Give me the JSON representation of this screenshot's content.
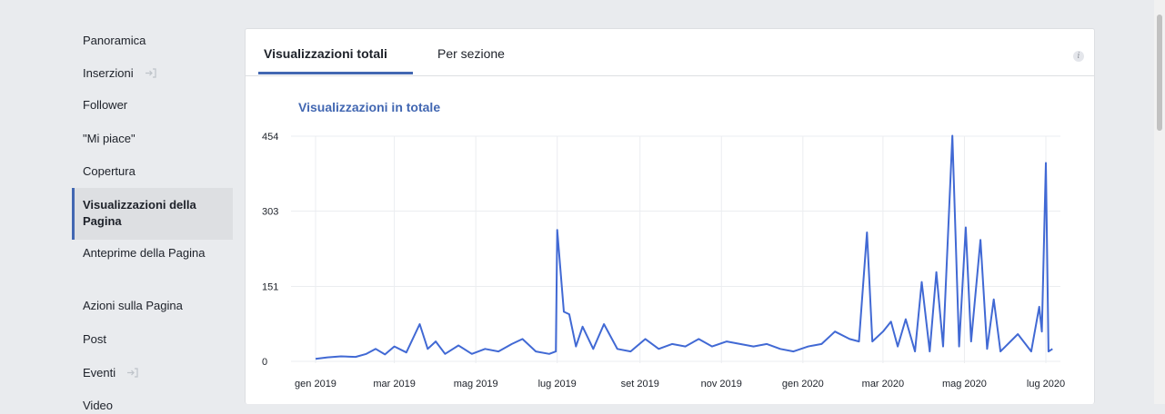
{
  "sidebar": {
    "items": [
      {
        "label": "Panoramica",
        "active": false
      },
      {
        "label": "Inserzioni",
        "active": false,
        "icon": "promote-icon"
      },
      {
        "label": "Follower",
        "active": false
      },
      {
        "label": "\"Mi piace\"",
        "active": false
      },
      {
        "label": "Copertura",
        "active": false
      },
      {
        "label": "Visualizzazioni della Pagina",
        "active": true
      },
      {
        "label": "Anteprime della Pagina",
        "active": false
      },
      {
        "label": "Azioni sulla Pagina",
        "active": false
      },
      {
        "label": "Post",
        "active": false
      },
      {
        "label": "Eventi",
        "active": false,
        "icon": "promote-icon"
      },
      {
        "label": "Video",
        "active": false
      }
    ]
  },
  "tabs": {
    "total_label": "Visualizzazioni totali",
    "section_label": "Per sezione"
  },
  "info_icon": "i",
  "colors": {
    "accent": "#4267b2",
    "line": "#4169d4"
  },
  "chart_data": {
    "type": "line",
    "title": "Visualizzazioni in totale",
    "xlabel": "",
    "ylabel": "",
    "ylim": [
      0,
      454
    ],
    "yticks": [
      "0",
      "151",
      "303",
      "454"
    ],
    "xtick_labels": [
      "gen 2019",
      "mar 2019",
      "mag 2019",
      "lug 2019",
      "set 2019",
      "nov 2019",
      "gen 2020",
      "mar 2020",
      "mag 2020",
      "lug 2020"
    ],
    "grid": true,
    "legend": "none",
    "x_range": [
      "2019-01-01",
      "2020-07-01"
    ],
    "series": [
      {
        "points": [
          [
            "2019-01-01",
            5
          ],
          [
            "2019-01-10",
            8
          ],
          [
            "2019-01-20",
            10
          ],
          [
            "2019-01-31",
            9
          ],
          [
            "2019-02-08",
            15
          ],
          [
            "2019-02-15",
            25
          ],
          [
            "2019-02-22",
            14
          ],
          [
            "2019-03-01",
            30
          ],
          [
            "2019-03-10",
            18
          ],
          [
            "2019-03-20",
            75
          ],
          [
            "2019-03-26",
            25
          ],
          [
            "2019-04-01",
            40
          ],
          [
            "2019-04-08",
            15
          ],
          [
            "2019-04-18",
            32
          ],
          [
            "2019-04-28",
            15
          ],
          [
            "2019-05-08",
            25
          ],
          [
            "2019-05-18",
            20
          ],
          [
            "2019-05-28",
            35
          ],
          [
            "2019-06-05",
            45
          ],
          [
            "2019-06-15",
            20
          ],
          [
            "2019-06-25",
            15
          ],
          [
            "2019-06-30",
            20
          ],
          [
            "2019-07-01",
            265
          ],
          [
            "2019-07-06",
            100
          ],
          [
            "2019-07-10",
            95
          ],
          [
            "2019-07-15",
            30
          ],
          [
            "2019-07-20",
            70
          ],
          [
            "2019-07-28",
            25
          ],
          [
            "2019-08-05",
            75
          ],
          [
            "2019-08-15",
            25
          ],
          [
            "2019-08-25",
            20
          ],
          [
            "2019-09-05",
            45
          ],
          [
            "2019-09-15",
            25
          ],
          [
            "2019-09-25",
            35
          ],
          [
            "2019-10-05",
            30
          ],
          [
            "2019-10-15",
            45
          ],
          [
            "2019-10-25",
            30
          ],
          [
            "2019-11-05",
            40
          ],
          [
            "2019-11-15",
            35
          ],
          [
            "2019-11-25",
            30
          ],
          [
            "2019-12-05",
            35
          ],
          [
            "2019-12-15",
            25
          ],
          [
            "2019-12-25",
            20
          ],
          [
            "2020-01-05",
            30
          ],
          [
            "2020-01-15",
            35
          ],
          [
            "2020-01-25",
            60
          ],
          [
            "2020-02-05",
            45
          ],
          [
            "2020-02-12",
            40
          ],
          [
            "2020-02-18",
            260
          ],
          [
            "2020-02-22",
            40
          ],
          [
            "2020-03-01",
            60
          ],
          [
            "2020-03-07",
            80
          ],
          [
            "2020-03-12",
            30
          ],
          [
            "2020-03-18",
            85
          ],
          [
            "2020-03-25",
            20
          ],
          [
            "2020-03-30",
            160
          ],
          [
            "2020-04-05",
            20
          ],
          [
            "2020-04-10",
            180
          ],
          [
            "2020-04-15",
            30
          ],
          [
            "2020-04-22",
            455
          ],
          [
            "2020-04-27",
            30
          ],
          [
            "2020-05-02",
            270
          ],
          [
            "2020-05-06",
            40
          ],
          [
            "2020-05-13",
            245
          ],
          [
            "2020-05-18",
            25
          ],
          [
            "2020-05-23",
            125
          ],
          [
            "2020-05-28",
            20
          ],
          [
            "2020-06-10",
            55
          ],
          [
            "2020-06-20",
            20
          ],
          [
            "2020-06-26",
            110
          ],
          [
            "2020-06-28",
            60
          ],
          [
            "2020-07-01",
            400
          ],
          [
            "2020-07-03",
            20
          ],
          [
            "2020-07-06",
            25
          ]
        ]
      }
    ]
  }
}
